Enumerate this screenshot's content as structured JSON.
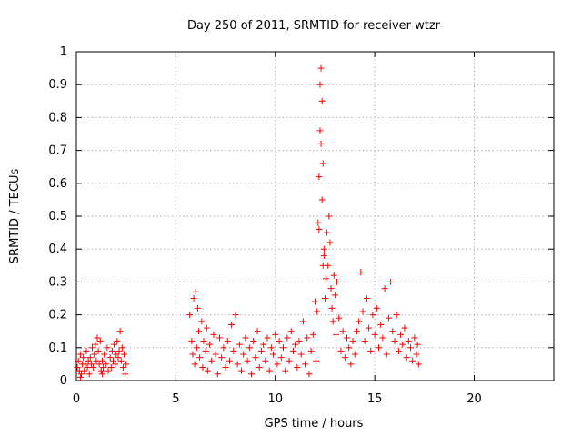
{
  "chart_data": {
    "type": "scatter",
    "title": "Day 250 of 2011, SRMTID for receiver wtzr",
    "xlabel": "GPS time / hours",
    "ylabel": "SRMTID / TECUs",
    "xlim": [
      0,
      24
    ],
    "ylim": [
      0,
      1
    ],
    "x_ticks": [
      0,
      5,
      10,
      15,
      20
    ],
    "y_ticks": [
      0,
      0.1,
      0.2,
      0.3,
      0.4,
      0.5,
      0.6,
      0.7,
      0.8,
      0.9,
      1
    ],
    "y_tick_labels": [
      "0",
      "0.1",
      "0.2",
      "0.3",
      "0.4",
      "0.5",
      "0.6",
      "0.7",
      "0.8",
      "0.9",
      "1"
    ],
    "grid": true,
    "marker": "+",
    "color": "#ff0000",
    "series": [
      {
        "name": "SRMTID",
        "points": [
          [
            0.05,
            0.04
          ],
          [
            0.1,
            0.06
          ],
          [
            0.15,
            0.03
          ],
          [
            0.2,
            0.08
          ],
          [
            0.25,
            0.02
          ],
          [
            0.3,
            0.05
          ],
          [
            0.35,
            0.07
          ],
          [
            0.4,
            0.03
          ],
          [
            0.45,
            0.05
          ],
          [
            0.5,
            0.09
          ],
          [
            0.55,
            0.04
          ],
          [
            0.6,
            0.06
          ],
          [
            0.65,
            0.02
          ],
          [
            0.7,
            0.07
          ],
          [
            0.75,
            0.05
          ],
          [
            0.8,
            0.1
          ],
          [
            0.85,
            0.04
          ],
          [
            0.9,
            0.08
          ],
          [
            0.95,
            0.11
          ],
          [
            1.0,
            0.06
          ],
          [
            1.05,
            0.13
          ],
          [
            1.1,
            0.09
          ],
          [
            1.15,
            0.05
          ],
          [
            1.2,
            0.12
          ],
          [
            1.25,
            0.03
          ],
          [
            1.3,
            0.06
          ],
          [
            1.35,
            0.04
          ],
          [
            1.4,
            0.08
          ],
          [
            1.5,
            0.05
          ],
          [
            1.55,
            0.1
          ],
          [
            1.6,
            0.03
          ],
          [
            1.7,
            0.07
          ],
          [
            1.75,
            0.04
          ],
          [
            1.8,
            0.09
          ],
          [
            1.85,
            0.06
          ],
          [
            1.9,
            0.11
          ],
          [
            1.95,
            0.05
          ],
          [
            2.0,
            0.08
          ],
          [
            2.05,
            0.12
          ],
          [
            2.1,
            0.07
          ],
          [
            2.15,
            0.09
          ],
          [
            2.2,
            0.15
          ],
          [
            2.25,
            0.06
          ],
          [
            2.3,
            0.1
          ],
          [
            2.35,
            0.04
          ],
          [
            2.4,
            0.08
          ],
          [
            2.45,
            0.02
          ],
          [
            2.5,
            0.05
          ],
          [
            0.2,
            0.01
          ],
          [
            1.3,
            0.02
          ],
          [
            5.7,
            0.2
          ],
          [
            5.8,
            0.12
          ],
          [
            5.85,
            0.08
          ],
          [
            5.9,
            0.25
          ],
          [
            5.95,
            0.05
          ],
          [
            6.0,
            0.27
          ],
          [
            6.05,
            0.1
          ],
          [
            6.1,
            0.22
          ],
          [
            6.15,
            0.15
          ],
          [
            6.2,
            0.07
          ],
          [
            6.3,
            0.18
          ],
          [
            6.35,
            0.04
          ],
          [
            6.4,
            0.12
          ],
          [
            6.5,
            0.09
          ],
          [
            6.55,
            0.16
          ],
          [
            6.6,
            0.03
          ],
          [
            6.7,
            0.11
          ],
          [
            6.8,
            0.06
          ],
          [
            6.9,
            0.14
          ],
          [
            7.0,
            0.08
          ],
          [
            7.1,
            0.02
          ],
          [
            7.2,
            0.13
          ],
          [
            7.3,
            0.07
          ],
          [
            7.4,
            0.1
          ],
          [
            7.5,
            0.04
          ],
          [
            7.6,
            0.12
          ],
          [
            7.7,
            0.06
          ],
          [
            7.8,
            0.17
          ],
          [
            7.9,
            0.09
          ],
          [
            8.0,
            0.2
          ],
          [
            8.1,
            0.05
          ],
          [
            8.2,
            0.11
          ],
          [
            8.3,
            0.03
          ],
          [
            8.4,
            0.08
          ],
          [
            8.5,
            0.13
          ],
          [
            8.6,
            0.06
          ],
          [
            8.7,
            0.1
          ],
          [
            8.8,
            0.02
          ],
          [
            8.9,
            0.12
          ],
          [
            9.0,
            0.07
          ],
          [
            9.1,
            0.15
          ],
          [
            9.2,
            0.04
          ],
          [
            9.3,
            0.09
          ],
          [
            9.4,
            0.11
          ],
          [
            9.5,
            0.06
          ],
          [
            9.6,
            0.13
          ],
          [
            9.7,
            0.03
          ],
          [
            9.8,
            0.1
          ],
          [
            9.9,
            0.08
          ],
          [
            10.0,
            0.14
          ],
          [
            10.1,
            0.05
          ],
          [
            10.2,
            0.12
          ],
          [
            10.3,
            0.07
          ],
          [
            10.4,
            0.1
          ],
          [
            10.5,
            0.03
          ],
          [
            10.6,
            0.13
          ],
          [
            10.7,
            0.06
          ],
          [
            10.8,
            0.15
          ],
          [
            10.9,
            0.09
          ],
          [
            11.0,
            0.11
          ],
          [
            11.1,
            0.04
          ],
          [
            11.2,
            0.12
          ],
          [
            11.3,
            0.08
          ],
          [
            11.4,
            0.18
          ],
          [
            11.5,
            0.05
          ],
          [
            11.6,
            0.13
          ],
          [
            11.7,
            0.02
          ],
          [
            11.8,
            0.09
          ],
          [
            11.9,
            0.14
          ],
          [
            12.0,
            0.24
          ],
          [
            12.05,
            0.06
          ],
          [
            12.1,
            0.21
          ],
          [
            12.15,
            0.48
          ],
          [
            12.2,
            0.62
          ],
          [
            12.25,
            0.76
          ],
          [
            12.3,
            0.95
          ],
          [
            12.35,
            0.85
          ],
          [
            12.4,
            0.66
          ],
          [
            12.45,
            0.38
          ],
          [
            12.5,
            0.25
          ],
          [
            12.55,
            0.31
          ],
          [
            12.6,
            0.45
          ],
          [
            12.65,
            0.35
          ],
          [
            12.7,
            0.5
          ],
          [
            12.75,
            0.42
          ],
          [
            12.8,
            0.28
          ],
          [
            12.85,
            0.22
          ],
          [
            12.9,
            0.18
          ],
          [
            12.95,
            0.32
          ],
          [
            13.0,
            0.26
          ],
          [
            13.05,
            0.14
          ],
          [
            13.1,
            0.3
          ],
          [
            13.2,
            0.19
          ],
          [
            13.3,
            0.09
          ],
          [
            13.4,
            0.15
          ],
          [
            13.5,
            0.07
          ],
          [
            13.6,
            0.13
          ],
          [
            13.7,
            0.1
          ],
          [
            13.8,
            0.05
          ],
          [
            13.9,
            0.12
          ],
          [
            14.0,
            0.08
          ],
          [
            14.1,
            0.15
          ],
          [
            14.2,
            0.18
          ],
          [
            14.3,
            0.33
          ],
          [
            14.4,
            0.21
          ],
          [
            14.5,
            0.12
          ],
          [
            14.6,
            0.25
          ],
          [
            14.7,
            0.16
          ],
          [
            14.8,
            0.09
          ],
          [
            14.9,
            0.2
          ],
          [
            15.0,
            0.14
          ],
          [
            15.1,
            0.22
          ],
          [
            15.2,
            0.1
          ],
          [
            15.3,
            0.17
          ],
          [
            15.4,
            0.13
          ],
          [
            15.5,
            0.28
          ],
          [
            15.6,
            0.08
          ],
          [
            15.7,
            0.19
          ],
          [
            15.8,
            0.3
          ],
          [
            15.9,
            0.15
          ],
          [
            16.0,
            0.12
          ],
          [
            16.1,
            0.2
          ],
          [
            16.2,
            0.09
          ],
          [
            16.3,
            0.14
          ],
          [
            16.4,
            0.11
          ],
          [
            16.5,
            0.16
          ],
          [
            16.6,
            0.07
          ],
          [
            16.7,
            0.12
          ],
          [
            16.8,
            0.1
          ],
          [
            16.9,
            0.06
          ],
          [
            17.0,
            0.13
          ],
          [
            17.1,
            0.08
          ],
          [
            17.15,
            0.11
          ],
          [
            17.2,
            0.05
          ],
          [
            12.25,
            0.9
          ],
          [
            12.3,
            0.72
          ],
          [
            12.35,
            0.55
          ],
          [
            12.4,
            0.35
          ],
          [
            12.2,
            0.46
          ],
          [
            12.45,
            0.4
          ]
        ]
      }
    ]
  }
}
